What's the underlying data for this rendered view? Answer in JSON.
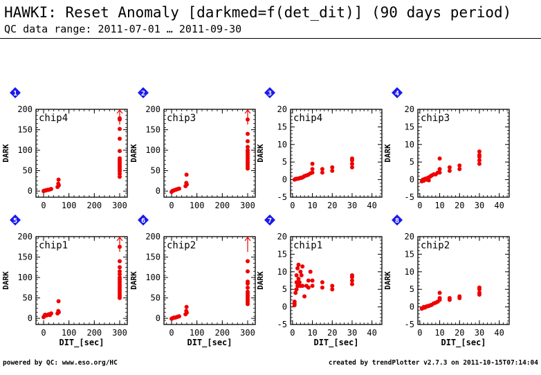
{
  "header": {
    "title": "HAWKI: Reset Anomaly [darkmed=f(det_dit)] (90 days period)",
    "subtitle": "QC data range: 2011-07-01 … 2011-09-30"
  },
  "footer": {
    "left": "powered by QC: www.eso.org/HC",
    "right": "created by trendPlotter v2.7.3 on 2011-10-15T07:14:04"
  },
  "colors": {
    "marker": "#ee0000",
    "badge": "#1a1aee",
    "badge_text": "#ffffff"
  },
  "chart_data": [
    {
      "type": "scatter",
      "badge": "1",
      "chip": "chip4",
      "xlabel": "",
      "ylabel": "DARK",
      "xlim": [
        -30,
        330
      ],
      "ylim": [
        -15,
        200
      ],
      "xticks": [
        0,
        100,
        200,
        300
      ],
      "yticks": [
        0,
        50,
        100,
        150,
        200
      ],
      "offscale_arrow_x": 300,
      "x": [
        0,
        3,
        6,
        10,
        15,
        20,
        25,
        30,
        55,
        60,
        58,
        59,
        300,
        300,
        300,
        300,
        300,
        300,
        300,
        300,
        300,
        300,
        300,
        300,
        300,
        300,
        300,
        300
      ],
      "y": [
        0,
        1,
        1,
        2,
        3,
        3,
        4,
        5,
        10,
        14,
        18,
        28,
        35,
        42,
        48,
        52,
        56,
        60,
        64,
        68,
        72,
        76,
        80,
        98,
        128,
        152,
        175,
        178
      ]
    },
    {
      "type": "scatter",
      "badge": "2",
      "chip": "chip3",
      "xlabel": "",
      "ylabel": "DARK",
      "xlim": [
        -30,
        330
      ],
      "ylim": [
        -15,
        200
      ],
      "xticks": [
        0,
        100,
        200,
        300
      ],
      "yticks": [
        0,
        50,
        100,
        150,
        200
      ],
      "offscale_arrow_x": 300,
      "x": [
        0,
        3,
        6,
        10,
        15,
        20,
        25,
        30,
        55,
        60,
        58,
        59,
        300,
        300,
        300,
        300,
        300,
        300,
        300,
        300,
        300,
        300,
        300,
        300,
        300,
        300
      ],
      "y": [
        -2,
        0,
        1,
        2,
        3,
        4,
        5,
        6,
        12,
        16,
        20,
        40,
        55,
        60,
        65,
        70,
        75,
        80,
        85,
        90,
        95,
        100,
        108,
        122,
        140,
        175
      ]
    },
    {
      "type": "scatter",
      "badge": "3",
      "chip": "chip4",
      "xlabel": "",
      "ylabel": "DARK",
      "xlim": [
        -1,
        45
      ],
      "ylim": [
        -5,
        20
      ],
      "xticks": [
        0,
        10,
        20,
        30,
        40
      ],
      "yticks": [
        -5,
        0,
        5,
        10,
        15,
        20
      ],
      "x": [
        1,
        1.5,
        2,
        2.5,
        3,
        3.5,
        4,
        4.5,
        5,
        5.5,
        6,
        7,
        8,
        9,
        10,
        10,
        10,
        15,
        15,
        20,
        20,
        30,
        30,
        30,
        30
      ],
      "y": [
        0,
        0.2,
        0.2,
        0.3,
        0.3,
        0.4,
        0.5,
        0.5,
        0.6,
        0.8,
        1,
        1.2,
        1.4,
        1.8,
        2,
        3,
        4.5,
        2,
        3,
        2.5,
        3.5,
        3.5,
        4.5,
        5.5,
        6
      ]
    },
    {
      "type": "scatter",
      "badge": "4",
      "chip": "chip3",
      "xlabel": "",
      "ylabel": "DARK",
      "xlim": [
        -1,
        45
      ],
      "ylim": [
        -5,
        20
      ],
      "xticks": [
        0,
        10,
        20,
        30,
        40
      ],
      "yticks": [
        -5,
        0,
        5,
        10,
        15,
        20
      ],
      "x": [
        1,
        1.5,
        2,
        2.5,
        3,
        3.5,
        4,
        4.5,
        5,
        5.5,
        6,
        7,
        8,
        9,
        10,
        10,
        10,
        15,
        15,
        20,
        20,
        30,
        30,
        30,
        30,
        30
      ],
      "y": [
        -0.5,
        0,
        -0.3,
        0.2,
        0.3,
        0,
        0.5,
        -0.2,
        0.8,
        1,
        1.2,
        1.5,
        1.5,
        2,
        2,
        3,
        6,
        2.5,
        3.5,
        3,
        4,
        4.5,
        5.5,
        6.5,
        7,
        8
      ]
    },
    {
      "type": "scatter",
      "badge": "5",
      "chip": "chip1",
      "xlabel": "DIT_[sec]",
      "ylabel": "DARK",
      "xlim": [
        -30,
        330
      ],
      "ylim": [
        -15,
        200
      ],
      "xticks": [
        0,
        100,
        200,
        300
      ],
      "yticks": [
        0,
        50,
        100,
        150,
        200
      ],
      "offscale_arrow_x": 300,
      "x": [
        0,
        3,
        6,
        10,
        15,
        20,
        25,
        30,
        55,
        60,
        58,
        59,
        300,
        300,
        300,
        300,
        300,
        300,
        300,
        300,
        300,
        300,
        300,
        300,
        300,
        300,
        300,
        300
      ],
      "y": [
        3,
        6,
        9,
        7,
        8,
        10,
        8,
        12,
        12,
        15,
        18,
        42,
        50,
        55,
        60,
        65,
        70,
        75,
        80,
        85,
        90,
        95,
        100,
        108,
        115,
        125,
        140,
        175
      ]
    },
    {
      "type": "scatter",
      "badge": "6",
      "chip": "chip2",
      "xlabel": "DIT_[sec]",
      "ylabel": "DARK",
      "xlim": [
        -30,
        330
      ],
      "ylim": [
        -15,
        200
      ],
      "xticks": [
        0,
        100,
        200,
        300
      ],
      "yticks": [
        0,
        50,
        100,
        150,
        200
      ],
      "offscale_arrow_x": 300,
      "x": [
        0,
        3,
        6,
        10,
        15,
        20,
        25,
        30,
        55,
        60,
        58,
        59,
        300,
        300,
        300,
        300,
        300,
        300,
        300,
        300,
        300,
        300,
        300,
        300
      ],
      "y": [
        -1,
        0,
        1,
        2,
        2,
        3,
        4,
        5,
        10,
        14,
        18,
        28,
        35,
        40,
        45,
        50,
        55,
        60,
        65,
        75,
        85,
        90,
        115,
        140
      ]
    },
    {
      "type": "scatter",
      "badge": "7",
      "chip": "chip1",
      "xlabel": "DIT_[sec]",
      "ylabel": "DARK",
      "xlim": [
        -1,
        45
      ],
      "ylim": [
        -5,
        20
      ],
      "xticks": [
        0,
        10,
        20,
        30,
        40
      ],
      "yticks": [
        -5,
        0,
        5,
        10,
        15,
        20
      ],
      "x": [
        1,
        1,
        1,
        1.5,
        2,
        2,
        2,
        2.5,
        2.5,
        3,
        3,
        3,
        3.5,
        4,
        4,
        4.5,
        5,
        5,
        6,
        7,
        8,
        8,
        9,
        10,
        10,
        15,
        15,
        20,
        20,
        30,
        30,
        30,
        30
      ],
      "y": [
        0.5,
        1,
        1.5,
        4,
        5,
        7,
        9,
        6,
        11,
        6,
        12,
        8,
        7,
        10,
        6,
        9,
        11.5,
        6,
        3,
        6,
        7.5,
        5.5,
        10,
        6,
        7.5,
        7,
        5.5,
        6,
        5,
        6.5,
        7.5,
        8.5,
        9
      ]
    },
    {
      "type": "scatter",
      "badge": "8",
      "chip": "chip2",
      "xlabel": "DIT_[sec]",
      "ylabel": "DARK",
      "xlim": [
        -1,
        45
      ],
      "ylim": [
        -5,
        20
      ],
      "xticks": [
        0,
        10,
        20,
        30,
        40
      ],
      "yticks": [
        -5,
        0,
        5,
        10,
        15,
        20
      ],
      "x": [
        1,
        1.5,
        2,
        2.5,
        3,
        3.5,
        4,
        4.5,
        5,
        5.5,
        6,
        7,
        8,
        9,
        10,
        10,
        10,
        15,
        15,
        20,
        20,
        30,
        30,
        30,
        30
      ],
      "y": [
        -0.5,
        -0.3,
        0,
        -0.2,
        0,
        0.2,
        0.2,
        0.3,
        0.4,
        0.5,
        0.6,
        1,
        1.2,
        1.5,
        2,
        2.5,
        4,
        2,
        2.5,
        2.5,
        3,
        3.5,
        4,
        5,
        5.5
      ]
    }
  ]
}
